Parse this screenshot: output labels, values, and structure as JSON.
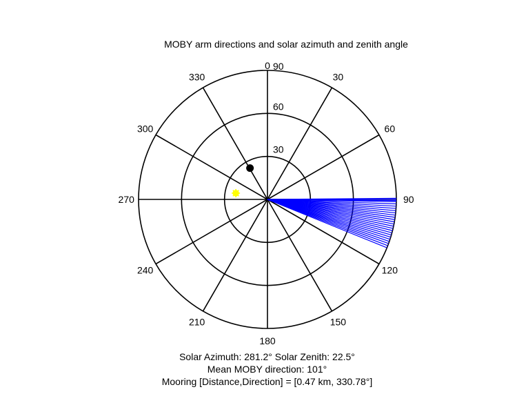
{
  "chart_data": {
    "type": "polar",
    "title": "MOBY arm directions and solar azimuth and zenith angle",
    "angle_labels": [
      "0",
      "30",
      "60",
      "90",
      "120",
      "150",
      "180",
      "210",
      "240",
      "270",
      "300",
      "330"
    ],
    "angle_values": [
      0,
      30,
      60,
      90,
      120,
      150,
      180,
      210,
      240,
      270,
      300,
      330
    ],
    "radial_labels": [
      "30",
      "60",
      "90"
    ],
    "radial_values": [
      30,
      60,
      90
    ],
    "rlim": [
      0,
      90
    ],
    "arm_directions": {
      "color": "#0000ff",
      "radius": 90,
      "azimuths": [
        89.5,
        90,
        90.5,
        91,
        92,
        93,
        94,
        95,
        96,
        97,
        98,
        99,
        100,
        101,
        102,
        103,
        104,
        105,
        106,
        107,
        108,
        109,
        110,
        111,
        112
      ]
    },
    "mooring_point": {
      "azimuth": 330.78,
      "radius": 25,
      "color": "#000000"
    },
    "sun_point": {
      "azimuth": 281.2,
      "zenith": 22.5,
      "color": "#ffff00"
    },
    "grid_color": "#000000"
  },
  "annotations": {
    "solar_line": "Solar Azimuth: 281.2°   Solar Zenith: 22.5°",
    "moby_line": "Mean MOBY direction: 101°",
    "mooring_line": "Mooring [Distance,Direction] = [0.47 km, 330.78°]"
  }
}
